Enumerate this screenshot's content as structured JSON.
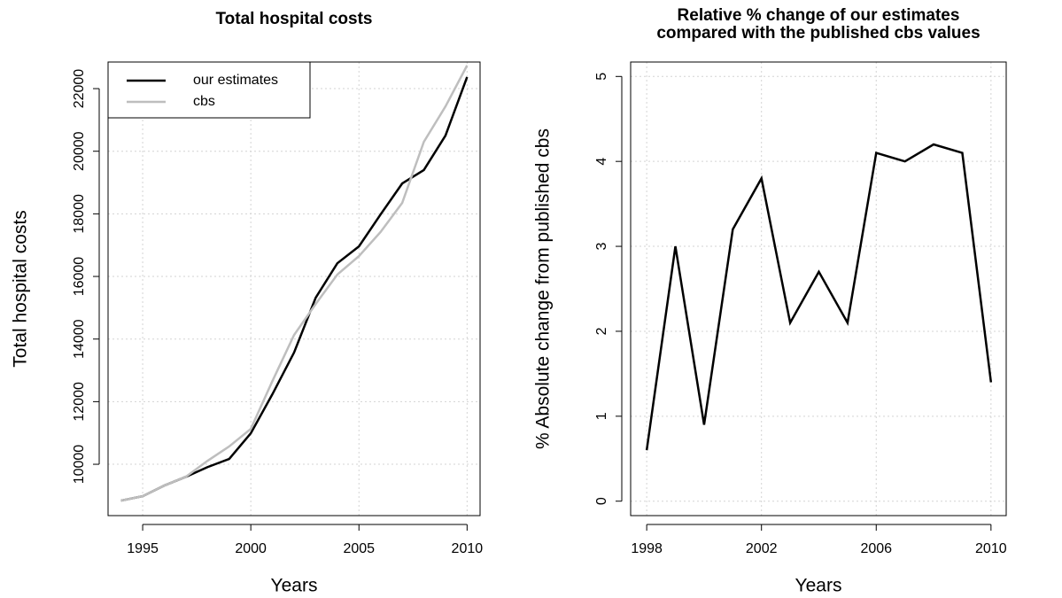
{
  "chart_data": [
    {
      "type": "line",
      "title": [
        "Total hospital costs"
      ],
      "x_label": "Years",
      "y_label": "Total hospital costs",
      "x": [
        1994,
        1995,
        1996,
        1997,
        1998,
        1999,
        2000,
        2001,
        2002,
        2003,
        2004,
        2005,
        2006,
        2007,
        2008,
        2009,
        2010
      ],
      "series": [
        {
          "name": "our estimates",
          "color": "#000000",
          "values": [
            8840,
            8980,
            9320,
            9600,
            9910,
            10170,
            10990,
            12240,
            13570,
            15320,
            16420,
            16960,
            17980,
            18970,
            19400,
            20500,
            22370
          ]
        },
        {
          "name": "cbs",
          "color": "#bebebe",
          "values": [
            8840,
            8980,
            9320,
            9600,
            10110,
            10570,
            11130,
            12660,
            14130,
            15120,
            16060,
            16650,
            17420,
            18350,
            20300,
            21430,
            22740
          ]
        }
      ],
      "xlim": [
        1993.4,
        2010.6
      ],
      "xticks": [
        1995,
        2000,
        2005,
        2010
      ],
      "ylim": [
        8360,
        22850
      ],
      "yticks": [
        10000,
        12000,
        14000,
        16000,
        18000,
        20000,
        22000
      ],
      "grid": true,
      "legend": "top-left"
    },
    {
      "type": "line",
      "title": [
        "Relative % change of our estimates",
        "compared with the published cbs values"
      ],
      "x_label": "Years",
      "y_label": "% Absolute change from published cbs",
      "x": [
        1998,
        1999,
        2000,
        2001,
        2002,
        2003,
        2004,
        2005,
        2006,
        2007,
        2008,
        2009,
        2010
      ],
      "series": [
        {
          "color": "#000000",
          "values": [
            0.6,
            3.0,
            0.9,
            3.2,
            3.8,
            2.1,
            2.7,
            2.1,
            4.1,
            4.0,
            4.2,
            4.1,
            1.4
          ]
        }
      ],
      "xlim": [
        1997.44,
        2010.53
      ],
      "xticks": [
        1998,
        2002,
        2006,
        2010
      ],
      "ylim": [
        -0.17,
        5.17
      ],
      "yticks": [
        0,
        1,
        2,
        3,
        4,
        5
      ],
      "grid": true
    }
  ]
}
